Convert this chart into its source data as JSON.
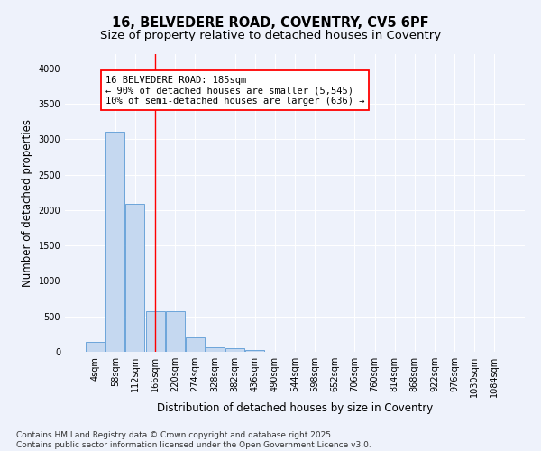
{
  "title_line1": "16, BELVEDERE ROAD, COVENTRY, CV5 6PF",
  "title_line2": "Size of property relative to detached houses in Coventry",
  "xlabel": "Distribution of detached houses by size in Coventry",
  "ylabel": "Number of detached properties",
  "categories": [
    "4sqm",
    "58sqm",
    "112sqm",
    "166sqm",
    "220sqm",
    "274sqm",
    "328sqm",
    "382sqm",
    "436sqm",
    "490sqm",
    "544sqm",
    "598sqm",
    "652sqm",
    "706sqm",
    "760sqm",
    "814sqm",
    "868sqm",
    "922sqm",
    "976sqm",
    "1030sqm",
    "1084sqm"
  ],
  "values": [
    140,
    3100,
    2090,
    575,
    575,
    200,
    65,
    50,
    30,
    0,
    0,
    0,
    0,
    0,
    0,
    0,
    0,
    0,
    0,
    0,
    0
  ],
  "bar_color": "#c5d8f0",
  "bar_edge_color": "#5b9bd5",
  "vline_x_index": 3.0,
  "vline_color": "red",
  "annotation_title": "16 BELVEDERE ROAD: 185sqm",
  "annotation_line2": "← 90% of detached houses are smaller (5,545)",
  "annotation_line3": "10% of semi-detached houses are larger (636) →",
  "annotation_box_color": "white",
  "annotation_box_edge_color": "red",
  "ylim": [
    0,
    4200
  ],
  "yticks": [
    0,
    500,
    1000,
    1500,
    2000,
    2500,
    3000,
    3500,
    4000
  ],
  "background_color": "#eef2fb",
  "grid_color": "white",
  "footer_line1": "Contains HM Land Registry data © Crown copyright and database right 2025.",
  "footer_line2": "Contains public sector information licensed under the Open Government Licence v3.0.",
  "title_fontsize": 10.5,
  "subtitle_fontsize": 9.5,
  "axis_label_fontsize": 8.5,
  "tick_fontsize": 7,
  "footer_fontsize": 6.5,
  "annot_fontsize": 7.5
}
